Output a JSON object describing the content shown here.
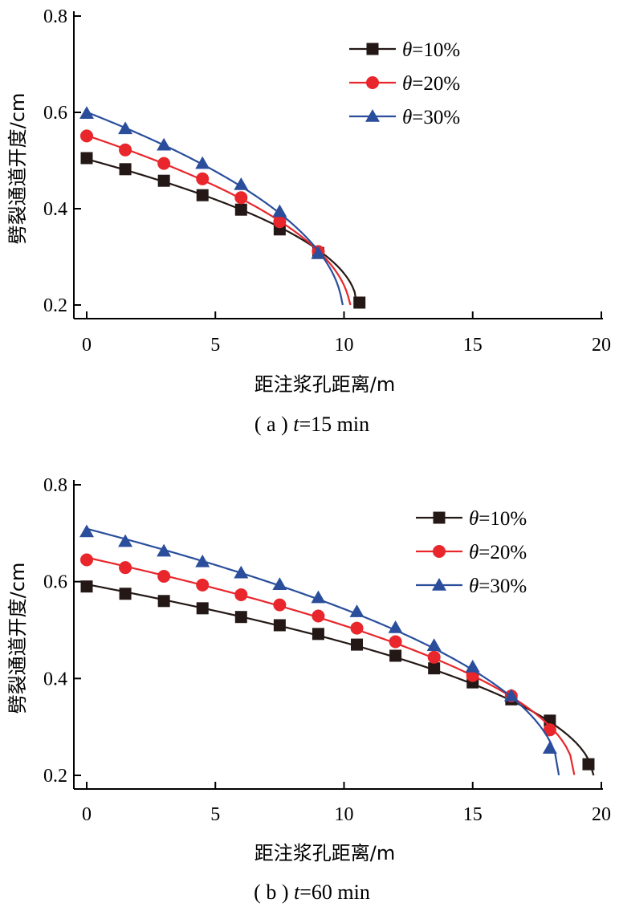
{
  "chart_data": [
    {
      "type": "line",
      "caption_prefix": "( a ) ",
      "caption_var": "t",
      "caption_rest": "=15 min",
      "xlabel": "距注浆孔距离/m",
      "ylabel": "劈裂通道开度/cm",
      "xlim": [
        0,
        20
      ],
      "ylim": [
        0.2,
        0.8
      ],
      "xticks": [
        "0",
        "5",
        "10",
        "15",
        "20"
      ],
      "yticks": [
        "0.2",
        "0.4",
        "0.6",
        "0.8"
      ],
      "legend_position": "top-right",
      "series": [
        {
          "name": "θ=10%",
          "color": "#231815",
          "marker": "square",
          "x": [
            0,
            1.5,
            3.0,
            4.5,
            6.0,
            7.5,
            9.0,
            10.6
          ],
          "y": [
            0.505,
            0.482,
            0.458,
            0.428,
            0.398,
            0.357,
            0.308,
            0.205
          ],
          "curve_end_x": 10.5
        },
        {
          "name": "θ=20%",
          "color": "#e8262b",
          "marker": "circle",
          "x": [
            0,
            1.5,
            3.0,
            4.5,
            6.0,
            7.5,
            9.0
          ],
          "y": [
            0.551,
            0.522,
            0.494,
            0.462,
            0.423,
            0.373,
            0.311
          ],
          "curve_end_x": 10.25
        },
        {
          "name": "θ=30%",
          "color": "#2a4e9c",
          "marker": "triangle",
          "x": [
            0,
            1.5,
            3.0,
            4.5,
            6.0,
            7.5,
            9.0
          ],
          "y": [
            0.598,
            0.566,
            0.532,
            0.494,
            0.45,
            0.394,
            0.307
          ],
          "curve_end_x": 9.95
        }
      ]
    },
    {
      "type": "line",
      "caption_prefix": "( b ) ",
      "caption_var": "t",
      "caption_rest": "=60 min",
      "xlabel": "距注浆孔距离/m",
      "ylabel": "劈裂通道开度/cm",
      "xlim": [
        0,
        20
      ],
      "ylim": [
        0.2,
        0.8
      ],
      "xticks": [
        "0",
        "5",
        "10",
        "15",
        "20"
      ],
      "yticks": [
        "0.2",
        "0.4",
        "0.6",
        "0.8"
      ],
      "legend_position": "top-right",
      "series": [
        {
          "name": "θ=10%",
          "color": "#231815",
          "marker": "square",
          "x": [
            0,
            1.5,
            3.0,
            4.5,
            6.0,
            7.5,
            9.0,
            10.5,
            12.0,
            13.5,
            15.0,
            16.5,
            18.0,
            19.5
          ],
          "y": [
            0.59,
            0.575,
            0.56,
            0.545,
            0.527,
            0.51,
            0.492,
            0.47,
            0.447,
            0.421,
            0.392,
            0.357,
            0.313,
            0.223
          ],
          "curve_end_x": 19.7
        },
        {
          "name": "θ=20%",
          "color": "#e8262b",
          "marker": "circle",
          "x": [
            0,
            1.5,
            3.0,
            4.5,
            6.0,
            7.5,
            9.0,
            10.5,
            12.0,
            13.5,
            15.0,
            16.5,
            18.0
          ],
          "y": [
            0.645,
            0.629,
            0.611,
            0.593,
            0.573,
            0.552,
            0.529,
            0.504,
            0.476,
            0.444,
            0.406,
            0.364,
            0.294
          ],
          "curve_end_x": 18.95
        },
        {
          "name": "θ=30%",
          "color": "#2a4e9c",
          "marker": "triangle",
          "x": [
            0,
            1.5,
            3.0,
            4.5,
            6.0,
            7.5,
            9.0,
            10.5,
            12.0,
            13.5,
            15.0,
            16.5,
            18.0
          ],
          "y": [
            0.703,
            0.683,
            0.663,
            0.641,
            0.618,
            0.594,
            0.567,
            0.538,
            0.505,
            0.468,
            0.424,
            0.364,
            0.256
          ],
          "curve_end_x": 18.35
        }
      ]
    }
  ]
}
